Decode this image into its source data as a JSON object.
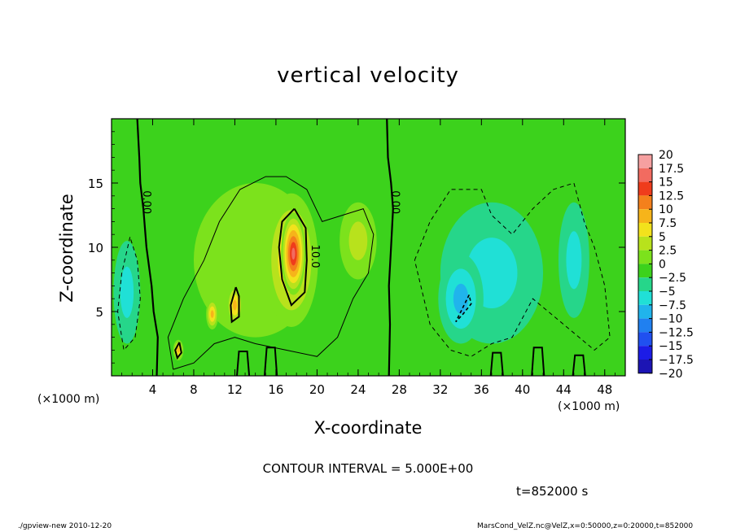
{
  "chart_data": {
    "type": "heatmap",
    "title": "vertical velocity",
    "xlabel": "X-coordinate",
    "ylabel": "Z-coordinate",
    "x_unit_label": "(×1000 m)",
    "xlim": [
      0,
      50
    ],
    "ylim": [
      0,
      20
    ],
    "xticks": [
      4,
      8,
      12,
      16,
      20,
      24,
      28,
      32,
      36,
      40,
      44,
      48
    ],
    "yticks": [
      5,
      10,
      15
    ],
    "colorbar": {
      "labels": [
        "20",
        "17.5",
        "15",
        "12.5",
        "10",
        "7.5",
        "5",
        "2.5",
        "0",
        "−2.5",
        "−5",
        "−7.5",
        "−10",
        "−12.5",
        "−15",
        "−17.5",
        "−20"
      ],
      "colors": [
        "#f6a0a0",
        "#f26b60",
        "#ef3c1c",
        "#f4801c",
        "#f6b41a",
        "#f2e21c",
        "#b8e21c",
        "#7ce21c",
        "#3cd21c",
        "#26d68a",
        "#20e0d6",
        "#20b4ec",
        "#2080f0",
        "#2050f0",
        "#1c1ce6",
        "#1c14b4",
        "#6c14b4"
      ]
    },
    "contour_labels": [
      "0.00",
      "0.00",
      "10.0"
    ],
    "contour_interval": "CONTOUR INTERVAL = 5.000E+00",
    "time": "t=852000 s",
    "features": [
      {
        "x": 17.7,
        "z": 9.5,
        "value": 17,
        "rx": 1.2,
        "rz": 3.2
      },
      {
        "x": 17.5,
        "z": 9.0,
        "value": 10,
        "rx": 2.6,
        "rz": 5.2
      },
      {
        "x": 12.0,
        "z": 5.5,
        "value": 9,
        "rx": 0.8,
        "rz": 1.6
      },
      {
        "x": 9.8,
        "z": 4.8,
        "value": 10,
        "rx": 0.6,
        "rz": 1.2
      },
      {
        "x": 6.5,
        "z": 2.0,
        "value": 9,
        "rx": 0.5,
        "rz": 0.8
      },
      {
        "x": 24.0,
        "z": 10.5,
        "value": 5,
        "rx": 1.8,
        "rz": 3.0
      },
      {
        "x": 14.0,
        "z": 9.0,
        "value": 2,
        "rx": 6.0,
        "rz": 6.0
      },
      {
        "x": 34.0,
        "z": 6.0,
        "value": -8,
        "rx": 2.2,
        "rz": 3.5
      },
      {
        "x": 37.0,
        "z": 8.0,
        "value": -4,
        "rx": 5.0,
        "rz": 5.5
      },
      {
        "x": 45.0,
        "z": 9.0,
        "value": -5,
        "rx": 1.5,
        "rz": 4.5
      },
      {
        "x": 1.5,
        "z": 6.5,
        "value": -4,
        "rx": 1.3,
        "rz": 4.0
      }
    ]
  },
  "footer": {
    "left": "./gpview-new  2010-12-20",
    "right": "MarsCond_VelZ.nc@VelZ,x=0:50000,z=0:20000,t=852000"
  }
}
